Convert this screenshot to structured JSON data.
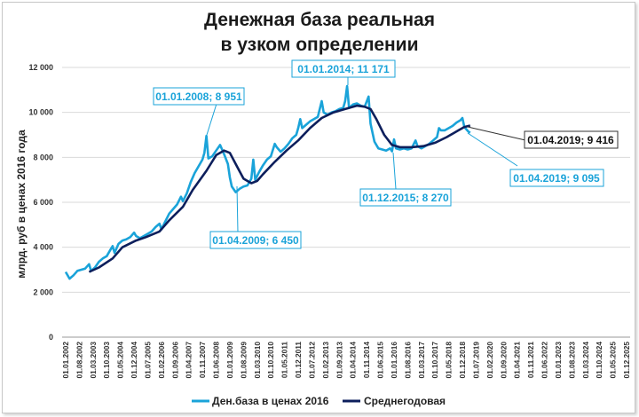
{
  "chart_data": {
    "type": "line",
    "title": [
      "Денежная база реальная",
      "в узком определении"
    ],
    "ylabel": "млрд. руб  в ценах 2016 года",
    "ylim": [
      0,
      12000
    ],
    "yticks": [
      "0",
      "2 000",
      "4 000",
      "6 000",
      "8 000",
      "10 000",
      "12 000"
    ],
    "ytick_values": [
      0,
      2000,
      4000,
      6000,
      8000,
      10000,
      12000
    ],
    "grid": "horizontal",
    "legend_position": "bottom",
    "x_start": "2002-01",
    "x_end": "2025-12",
    "x_tick_labels": [
      "01.01.2002",
      "01.08.2002",
      "01.03.2003",
      "01.10.2003",
      "01.05.2004",
      "01.12.2004",
      "01.07.2005",
      "01.02.2006",
      "01.09.2006",
      "01.04.2007",
      "01.11.2007",
      "01.06.2008",
      "01.01.2009",
      "01.08.2009",
      "01.03.2010",
      "01.10.2010",
      "01.05.2011",
      "01.12.2011",
      "01.07.2012",
      "01.02.2013",
      "01.09.2013",
      "01.04.2014",
      "01.11.2014",
      "01.06.2015",
      "01.01.2016",
      "01.08.2016",
      "01.03.2017",
      "01.10.2017",
      "01.05.2018",
      "01.12.2018",
      "01.07.2019",
      "01.02.2020",
      "01.09.2020",
      "01.04.2021",
      "01.11.2021",
      "01.06.2022",
      "01.01.2023",
      "01.08.2023",
      "01.03.2024",
      "01.10.2024",
      "01.05.2025",
      "01.12.2025"
    ],
    "series": [
      {
        "name": "Ден.база в ценах 2016",
        "color": "#1aa3d9",
        "points": [
          [
            "2002-01",
            2900
          ],
          [
            "2002-03",
            2600
          ],
          [
            "2002-05",
            2750
          ],
          [
            "2002-07",
            2950
          ],
          [
            "2002-09",
            3000
          ],
          [
            "2002-11",
            3050
          ],
          [
            "2003-01",
            3250
          ],
          [
            "2003-02",
            2950
          ],
          [
            "2003-04",
            3100
          ],
          [
            "2003-06",
            3350
          ],
          [
            "2003-08",
            3500
          ],
          [
            "2003-10",
            3600
          ],
          [
            "2003-12",
            3900
          ],
          [
            "2004-01",
            4050
          ],
          [
            "2004-02",
            3750
          ],
          [
            "2004-04",
            4150
          ],
          [
            "2004-06",
            4300
          ],
          [
            "2004-08",
            4350
          ],
          [
            "2004-10",
            4450
          ],
          [
            "2004-12",
            4650
          ],
          [
            "2005-01",
            4500
          ],
          [
            "2005-03",
            4400
          ],
          [
            "2005-05",
            4500
          ],
          [
            "2005-07",
            4600
          ],
          [
            "2005-09",
            4700
          ],
          [
            "2005-11",
            4900
          ],
          [
            "2006-01",
            5050
          ],
          [
            "2006-02",
            4800
          ],
          [
            "2006-04",
            5150
          ],
          [
            "2006-06",
            5500
          ],
          [
            "2006-08",
            5700
          ],
          [
            "2006-10",
            5900
          ],
          [
            "2006-12",
            6250
          ],
          [
            "2007-01",
            6050
          ],
          [
            "2007-03",
            6400
          ],
          [
            "2007-05",
            6900
          ],
          [
            "2007-07",
            7300
          ],
          [
            "2007-09",
            7600
          ],
          [
            "2007-11",
            7900
          ],
          [
            "2007-12",
            8200
          ],
          [
            "2008-01",
            8951
          ],
          [
            "2008-02",
            7950
          ],
          [
            "2008-04",
            8050
          ],
          [
            "2008-06",
            8300
          ],
          [
            "2008-08",
            8550
          ],
          [
            "2008-10",
            8150
          ],
          [
            "2008-12",
            7700
          ],
          [
            "2009-01",
            7100
          ],
          [
            "2009-02",
            6700
          ],
          [
            "2009-04",
            6450
          ],
          [
            "2009-06",
            6600
          ],
          [
            "2009-08",
            6700
          ],
          [
            "2009-10",
            6750
          ],
          [
            "2009-12",
            7050
          ],
          [
            "2010-01",
            7900
          ],
          [
            "2010-02",
            7000
          ],
          [
            "2010-04",
            7350
          ],
          [
            "2010-06",
            7650
          ],
          [
            "2010-08",
            7900
          ],
          [
            "2010-10",
            8050
          ],
          [
            "2010-12",
            8600
          ],
          [
            "2011-01",
            8450
          ],
          [
            "2011-03",
            8250
          ],
          [
            "2011-05",
            8400
          ],
          [
            "2011-07",
            8600
          ],
          [
            "2011-09",
            8850
          ],
          [
            "2011-11",
            9000
          ],
          [
            "2011-12",
            9300
          ],
          [
            "2012-01",
            9700
          ],
          [
            "2012-02",
            9300
          ],
          [
            "2012-04",
            9450
          ],
          [
            "2012-06",
            9600
          ],
          [
            "2012-08",
            9700
          ],
          [
            "2012-10",
            9800
          ],
          [
            "2012-12",
            10500
          ],
          [
            "2013-01",
            10000
          ],
          [
            "2013-03",
            9900
          ],
          [
            "2013-05",
            10000
          ],
          [
            "2013-07",
            10050
          ],
          [
            "2013-09",
            10150
          ],
          [
            "2013-11",
            10200
          ],
          [
            "2013-12",
            10500
          ],
          [
            "2014-01",
            11171
          ],
          [
            "2014-02",
            10200
          ],
          [
            "2014-04",
            10350
          ],
          [
            "2014-06",
            10400
          ],
          [
            "2014-08",
            10300
          ],
          [
            "2014-10",
            10250
          ],
          [
            "2014-12",
            10700
          ],
          [
            "2015-01",
            9500
          ],
          [
            "2015-03",
            8700
          ],
          [
            "2015-05",
            8400
          ],
          [
            "2015-07",
            8350
          ],
          [
            "2015-09",
            8300
          ],
          [
            "2015-11",
            8400
          ],
          [
            "2015-12",
            8270
          ],
          [
            "2016-01",
            8800
          ],
          [
            "2016-02",
            8400
          ],
          [
            "2016-04",
            8350
          ],
          [
            "2016-06",
            8400
          ],
          [
            "2016-08",
            8350
          ],
          [
            "2016-10",
            8400
          ],
          [
            "2016-12",
            8750
          ],
          [
            "2017-01",
            8500
          ],
          [
            "2017-03",
            8400
          ],
          [
            "2017-05",
            8500
          ],
          [
            "2017-07",
            8600
          ],
          [
            "2017-09",
            8750
          ],
          [
            "2017-11",
            8900
          ],
          [
            "2017-12",
            9300
          ],
          [
            "2018-01",
            9200
          ],
          [
            "2018-03",
            9200
          ],
          [
            "2018-05",
            9300
          ],
          [
            "2018-07",
            9400
          ],
          [
            "2018-09",
            9550
          ],
          [
            "2018-11",
            9650
          ],
          [
            "2018-12",
            9750
          ],
          [
            "2019-01",
            9350
          ],
          [
            "2019-03",
            9150
          ],
          [
            "2019-04",
            9095
          ]
        ]
      },
      {
        "name": "Среднегодовая",
        "color": "#0d1f5c",
        "points": [
          [
            "2003-01",
            2900
          ],
          [
            "2003-06",
            3100
          ],
          [
            "2004-01",
            3500
          ],
          [
            "2004-06",
            4000
          ],
          [
            "2005-01",
            4300
          ],
          [
            "2005-06",
            4450
          ],
          [
            "2006-01",
            4700
          ],
          [
            "2006-06",
            5200
          ],
          [
            "2007-01",
            5800
          ],
          [
            "2007-06",
            6550
          ],
          [
            "2008-01",
            7400
          ],
          [
            "2008-06",
            8100
          ],
          [
            "2008-10",
            8300
          ],
          [
            "2009-01",
            8200
          ],
          [
            "2009-04",
            7700
          ],
          [
            "2009-08",
            7050
          ],
          [
            "2009-12",
            6850
          ],
          [
            "2010-03",
            6950
          ],
          [
            "2010-06",
            7250
          ],
          [
            "2010-12",
            7800
          ],
          [
            "2011-06",
            8300
          ],
          [
            "2011-12",
            8750
          ],
          [
            "2012-06",
            9300
          ],
          [
            "2012-12",
            9750
          ],
          [
            "2013-06",
            10000
          ],
          [
            "2013-12",
            10150
          ],
          [
            "2014-06",
            10300
          ],
          [
            "2014-10",
            10250
          ],
          [
            "2015-01",
            10150
          ],
          [
            "2015-04",
            9700
          ],
          [
            "2015-08",
            9000
          ],
          [
            "2015-12",
            8550
          ],
          [
            "2016-04",
            8450
          ],
          [
            "2016-10",
            8450
          ],
          [
            "2017-04",
            8500
          ],
          [
            "2017-10",
            8650
          ],
          [
            "2018-04",
            8900
          ],
          [
            "2018-10",
            9200
          ],
          [
            "2019-01",
            9350
          ],
          [
            "2019-04",
            9416
          ]
        ]
      }
    ],
    "annotations": [
      {
        "text": "01.01.2008; 8 951",
        "style": "cyan"
      },
      {
        "text": "01.01.2014; 11 171",
        "style": "cyan"
      },
      {
        "text": "01.04.2009; 6 450",
        "style": "cyan"
      },
      {
        "text": "01.12.2015; 8 270",
        "style": "cyan"
      },
      {
        "text": "01.04.2019;  9 416",
        "style": "dark"
      },
      {
        "text": "01.04.2019; 9 095",
        "style": "cyan"
      }
    ]
  }
}
